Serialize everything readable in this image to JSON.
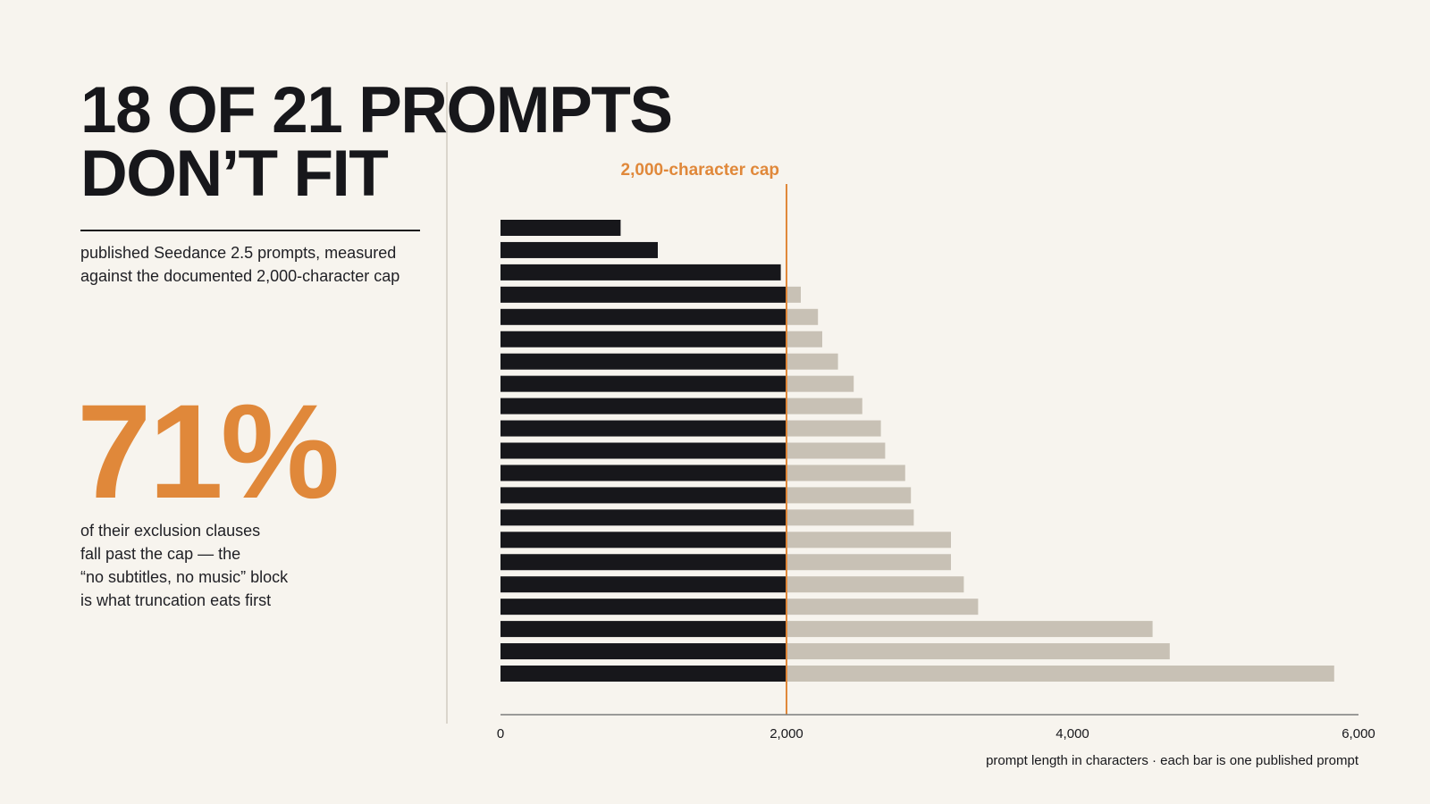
{
  "headline": {
    "line1": "18 OF 21 PROMPTS",
    "line2": "DON’T FIT"
  },
  "subtitle": {
    "line1": "published Seedance 2.5 prompts, measured",
    "line2": "against the documented 2,000-character cap"
  },
  "stat": {
    "value": "71%",
    "caption": [
      "of their exclusion clauses",
      "fall past the cap — the",
      "“no subtitles, no music” block",
      "is what truncation eats first"
    ]
  },
  "colors": {
    "background": "#f7f4ee",
    "ink": "#17171b",
    "accent": "#e0883a",
    "overflow": "#c8c1b5",
    "axis": "#7c7c7c",
    "divider": "#dad5cc"
  },
  "chart_data": {
    "type": "bar",
    "orientation": "horizontal",
    "values": [
      840,
      1100,
      1960,
      2100,
      2220,
      2250,
      2360,
      2470,
      2530,
      2660,
      2690,
      2830,
      2870,
      2890,
      3150,
      3150,
      3240,
      3340,
      4560,
      4680,
      5830
    ],
    "cap": 2000,
    "cap_label": "2,000-character cap",
    "xlim": [
      0,
      6000
    ],
    "xticks": [
      0,
      2000,
      4000,
      6000
    ],
    "xtick_labels": [
      "0",
      "2,000",
      "4,000",
      "6,000"
    ],
    "xlabel": "prompt length in characters · each bar is one published prompt",
    "grid": false
  }
}
